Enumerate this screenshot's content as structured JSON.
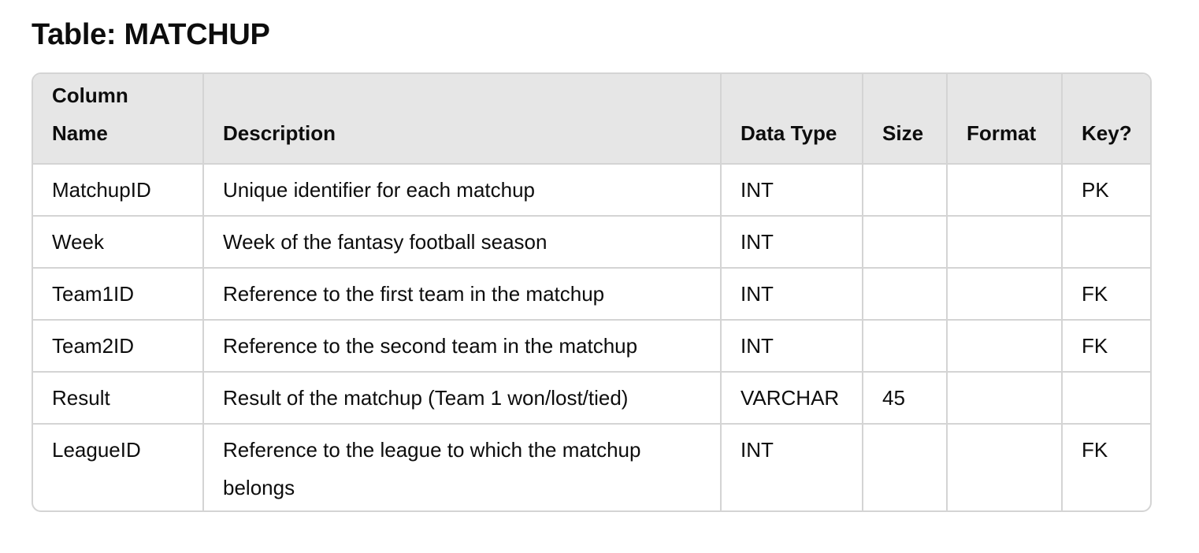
{
  "title": "Table: MATCHUP",
  "table": {
    "headers": [
      "Column Name",
      "Description",
      "Data Type",
      "Size",
      "Format",
      "Key?"
    ],
    "rows": [
      [
        "MatchupID",
        "Unique identifier for each matchup",
        "INT",
        "",
        "",
        "PK"
      ],
      [
        "Week",
        "Week of the fantasy football season",
        "INT",
        "",
        "",
        ""
      ],
      [
        "Team1ID",
        "Reference to the first team in the matchup",
        "INT",
        "",
        "",
        "FK"
      ],
      [
        "Team2ID",
        "Reference to the second team in the matchup",
        "INT",
        "",
        "",
        "FK"
      ],
      [
        "Result",
        "Result of the matchup (Team 1 won/lost/tied)",
        "VARCHAR",
        "45",
        "",
        ""
      ],
      [
        "LeagueID",
        "Reference to the league to which the matchup belongs",
        "INT",
        "",
        "",
        "FK"
      ]
    ]
  }
}
